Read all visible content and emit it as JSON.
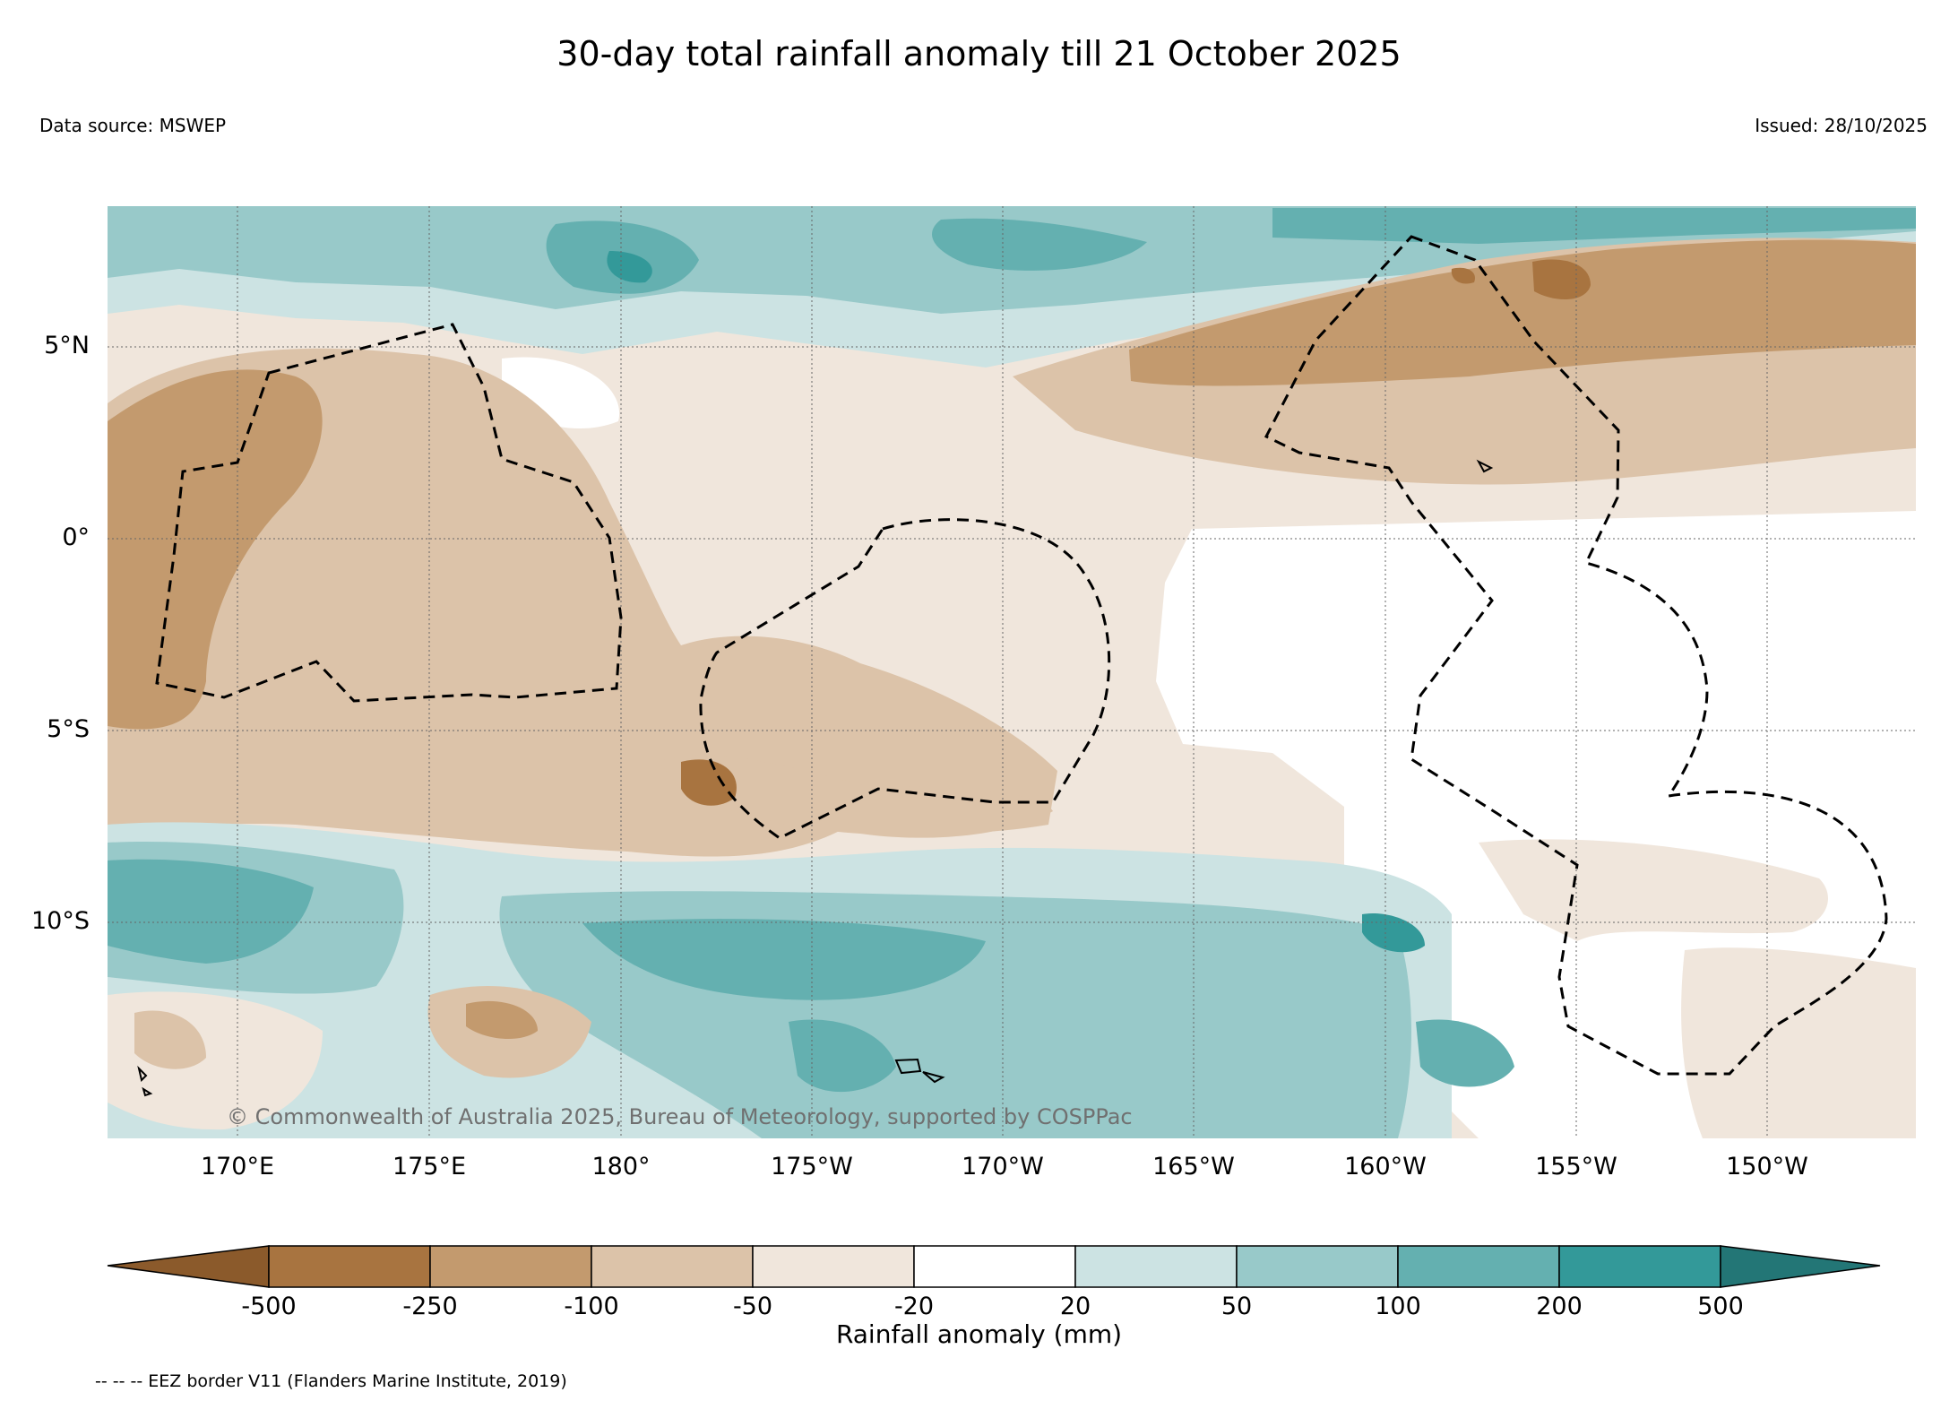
{
  "title": "30-day total rainfall anomaly till 21 October 2025",
  "data_source": "Data source: MSWEP",
  "issued": "Issued: 28/10/2025",
  "copyright": "© Commonwealth of Australia 2025, Bureau of Meteorology, supported by COSPPac",
  "eez_note": "-- -- -- EEZ border V11 (Flanders Marine Institute, 2019)",
  "map": {
    "lat_labels": [
      "5°N",
      "0°",
      "5°S",
      "10°S"
    ],
    "lon_labels": [
      "170°E",
      "175°E",
      "180°",
      "175°W",
      "170°W",
      "165°W",
      "160°W",
      "155°W",
      "150°W"
    ],
    "lat_range": [
      "8.5°N",
      "15.8°S"
    ],
    "lon_range": [
      "166.6°E",
      "146.6°W"
    ]
  },
  "colorbar": {
    "label": "Rainfall anomaly (mm)",
    "ticks": [
      "-500",
      "-250",
      "-100",
      "-50",
      "-20",
      "20",
      "50",
      "100",
      "200",
      "500"
    ],
    "colors": [
      "#8b5a2b",
      "#a87440",
      "#c39a6e",
      "#dcc3a9",
      "#f0e6dc",
      "#ffffff",
      "#cce3e3",
      "#98c9c9",
      "#64b0b0",
      "#339999",
      "#237676"
    ]
  }
}
